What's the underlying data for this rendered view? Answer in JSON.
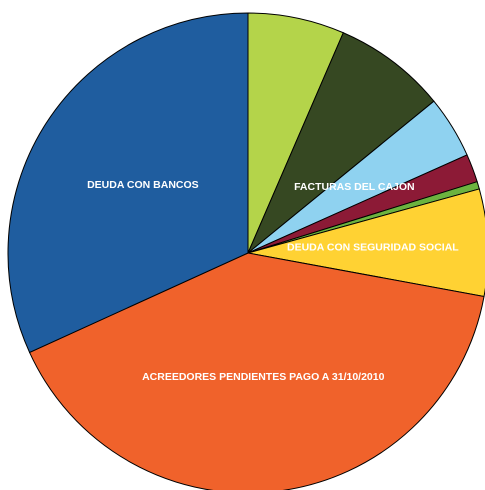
{
  "chart_data": {
    "type": "pie",
    "categories": [
      null,
      null,
      "FACTURAS DEL CAJON",
      null,
      null,
      "DEUDA CON SEGURIDAD SOCIAL",
      "ACREEDORES PENDIENTES PAGO A 31/10/2010",
      "DEUDA CON BANCOS"
    ],
    "values": [
      6.5,
      7.6,
      4.2,
      1.9,
      0.5,
      7.2,
      40.3,
      31.8
    ],
    "colors": [
      "#b4d44a",
      "#364822",
      "#8fd2f0",
      "#8c1a36",
      "#6cb33f",
      "#ffd233",
      "#f0622b",
      "#1f5d9f"
    ]
  }
}
